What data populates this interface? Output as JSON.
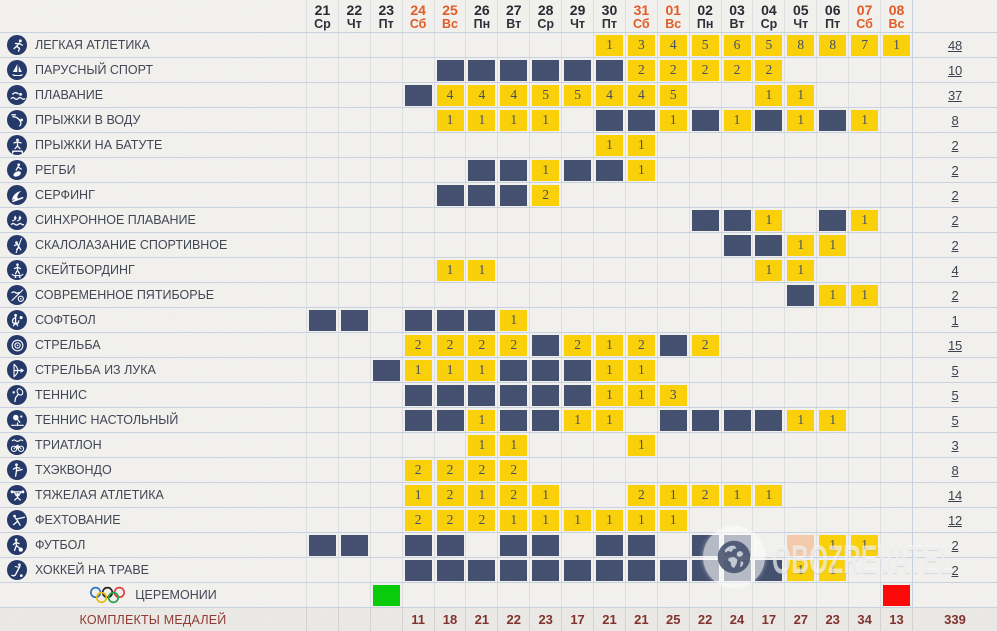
{
  "header": {
    "columns": [
      {
        "day": "21",
        "dow": "Ср",
        "weekend": false
      },
      {
        "day": "22",
        "dow": "Чт",
        "weekend": false
      },
      {
        "day": "23",
        "dow": "Пт",
        "weekend": false
      },
      {
        "day": "24",
        "dow": "Сб",
        "weekend": true
      },
      {
        "day": "25",
        "dow": "Вс",
        "weekend": true
      },
      {
        "day": "26",
        "dow": "Пн",
        "weekend": false
      },
      {
        "day": "27",
        "dow": "Вт",
        "weekend": false
      },
      {
        "day": "28",
        "dow": "Ср",
        "weekend": false
      },
      {
        "day": "29",
        "dow": "Чт",
        "weekend": false
      },
      {
        "day": "30",
        "dow": "Пт",
        "weekend": false
      },
      {
        "day": "31",
        "dow": "Сб",
        "weekend": true
      },
      {
        "day": "01",
        "dow": "Вс",
        "weekend": true
      },
      {
        "day": "02",
        "dow": "Пн",
        "weekend": false
      },
      {
        "day": "03",
        "dow": "Вт",
        "weekend": false
      },
      {
        "day": "04",
        "dow": "Ср",
        "weekend": false
      },
      {
        "day": "05",
        "dow": "Чт",
        "weekend": false
      },
      {
        "day": "06",
        "dow": "Пт",
        "weekend": false
      },
      {
        "day": "07",
        "dow": "Сб",
        "weekend": true
      },
      {
        "day": "08",
        "dow": "Вс",
        "weekend": true
      }
    ]
  },
  "legend": {
    "cell_codes": "E=event-day(dark), digit=medal-count(yellow), P=peach, G=green, R=red, .=empty"
  },
  "rows": [
    {
      "icon": "athletics-icon",
      "label": "ЛЕГКАЯ АТЛЕТИКА",
      "cells": ".........1345658871",
      "total": "48"
    },
    {
      "icon": "sailing-icon",
      "label": "ПАРУСНЫЙ СПОРТ",
      "cells": "....EEEEEE22222....",
      "total": "10"
    },
    {
      "icon": "swimming-icon",
      "label": "ПЛАВАНИЕ",
      "cells": "...E44455445..11...",
      "total": "37"
    },
    {
      "icon": "diving-icon",
      "label": "ПРЫЖКИ В ВОДУ",
      "cells": "....1111.EE1E1E1E1.",
      "total": "8"
    },
    {
      "icon": "trampoline-icon",
      "label": "ПРЫЖКИ НА БАТУТЕ",
      "cells": ".........11........",
      "total": "2"
    },
    {
      "icon": "rugby-icon",
      "label": "РЕГБИ",
      "cells": ".....EE1EE1........",
      "total": "2"
    },
    {
      "icon": "surfing-icon",
      "label": "СЕРФИНГ",
      "cells": "....EEE2...........",
      "total": "2"
    },
    {
      "icon": "artistic-swimming-icon",
      "label": "СИНХРОННОЕ ПЛАВАНИЕ",
      "cells": "............EE1.E1.",
      "total": "2"
    },
    {
      "icon": "sport-climbing-icon",
      "label": "СКАЛОЛАЗАНИЕ СПОРТИВНОЕ",
      "cells": ".............EE11..",
      "total": "2"
    },
    {
      "icon": "skateboarding-icon",
      "label": "СКЕЙТБОРДИНГ",
      "cells": "....11........11...",
      "total": "4"
    },
    {
      "icon": "modern-pentathlon-icon",
      "label": "СОВРЕМЕННОЕ ПЯТИБОРЬЕ",
      "cells": "...............E11.",
      "total": "2"
    },
    {
      "icon": "softball-icon",
      "label": "СОФТБОЛ",
      "cells": "EE.EEE1............",
      "total": "1"
    },
    {
      "icon": "shooting-icon",
      "label": "СТРЕЛЬБА",
      "cells": "...2222E212E2......",
      "total": "15"
    },
    {
      "icon": "archery-icon",
      "label": "СТРЕЛЬБА ИЗ ЛУКА",
      "cells": "..E111EEE11........",
      "total": "5"
    },
    {
      "icon": "tennis-icon",
      "label": "ТЕННИС",
      "cells": "...EEEEEE113.......",
      "total": "5"
    },
    {
      "icon": "table-tennis-icon",
      "label": "ТЕННИС НАСТОЛЬНЫЙ",
      "cells": "...EE1EE11.EEEE11..",
      "total": "5"
    },
    {
      "icon": "triathlon-icon",
      "label": "ТРИАТЛОН",
      "cells": ".....11...1........",
      "total": "3"
    },
    {
      "icon": "taekwondo-icon",
      "label": "ТХЭКВОНДО",
      "cells": "...2222............",
      "total": "8"
    },
    {
      "icon": "weightlifting-icon",
      "label": "ТЯЖЕЛАЯ АТЛЕТИКА",
      "cells": "...12121..21211....",
      "total": "14"
    },
    {
      "icon": "fencing-icon",
      "label": "ФЕХТОВАНИЕ",
      "cells": "...222111111.......",
      "total": "12"
    },
    {
      "icon": "football-icon",
      "label": "ФУТБОЛ",
      "cells": "EE.EE.EE.EE.EE.P11.",
      "total": "2"
    },
    {
      "icon": "field-hockey-icon",
      "label": "ХОККЕЙ НА ТРАВЕ",
      "cells": "...EEEEEEEEEEEE11..",
      "total": "2"
    }
  ],
  "ceremonies": {
    "icon": "olympic-rings-icon",
    "label": "ЦЕРЕМОНИИ",
    "cells": "..G...............R",
    "total": ""
  },
  "medal_totals": {
    "label": "КОМПЛЕКТЫ МЕДАЛЕЙ",
    "values": [
      "",
      "",
      "",
      "11",
      "18",
      "21",
      "22",
      "23",
      "17",
      "21",
      "21",
      "25",
      "22",
      "24",
      "17",
      "27",
      "23",
      "34",
      "13"
    ],
    "grand_total": "339"
  },
  "watermark": {
    "text": "OBOZREVATEL",
    "icon": "globe-icon"
  },
  "colors": {
    "event_cell": "#3e4b6b",
    "medal_cell": "#fdd100",
    "peach_cell": "#f6cbab",
    "green_cell": "#00cc00",
    "red_cell": "#ff0000",
    "weekend_text": "#e4571f",
    "medal_totals_text": "#7e2b26",
    "icon_circle": "#1d3365"
  }
}
